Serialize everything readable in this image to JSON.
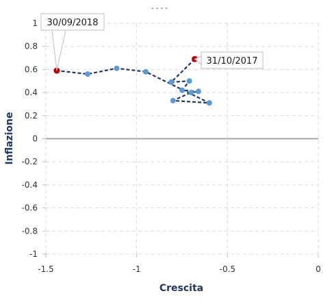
{
  "chart_data": {
    "type": "scatter",
    "title": "- - - -",
    "xlabel": "Crescita",
    "ylabel": "Inflazione",
    "xlim": [
      -1.5,
      0
    ],
    "ylim": [
      -1,
      1
    ],
    "x_ticks": [
      -1.5,
      -1,
      -0.5,
      0
    ],
    "x_tick_labels": [
      "-1.5",
      "-1",
      "-0.5",
      "0"
    ],
    "y_ticks": [
      1,
      0.8,
      0.6,
      0.4,
      0.2,
      0,
      -0.2,
      -0.4,
      -0.6,
      -0.8,
      -1
    ],
    "y_tick_labels": [
      "1",
      "0.8",
      "0.6",
      "0.4",
      "0.2",
      "0",
      "-0.2",
      "-0.4",
      "-0.6",
      "-0.8",
      "-1"
    ],
    "grid": true,
    "series": [
      {
        "line_style": "dashed",
        "line_color": "#1f3864",
        "marker_color": "#5b9bd5",
        "highlight_color": "#c00000",
        "points": [
          {
            "x": -0.68,
            "y": 0.69
          },
          {
            "x": -0.81,
            "y": 0.49
          },
          {
            "x": -0.71,
            "y": 0.5
          },
          {
            "x": -0.75,
            "y": 0.42
          },
          {
            "x": -0.66,
            "y": 0.41
          },
          {
            "x": -0.7,
            "y": 0.4
          },
          {
            "x": -0.8,
            "y": 0.33
          },
          {
            "x": -0.6,
            "y": 0.31
          },
          {
            "x": -0.95,
            "y": 0.58
          },
          {
            "x": -1.11,
            "y": 0.61
          },
          {
            "x": -1.27,
            "y": 0.56
          },
          {
            "x": -1.44,
            "y": 0.59
          }
        ]
      }
    ],
    "annotations": [
      {
        "text": "31/10/2017",
        "point_index": 0
      },
      {
        "text": "30/09/2018",
        "point_index": 11
      }
    ]
  }
}
